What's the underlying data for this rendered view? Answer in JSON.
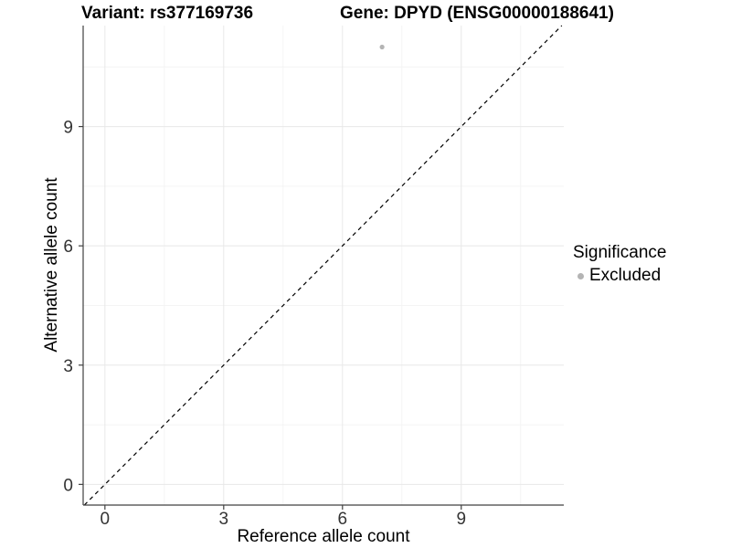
{
  "page": {
    "background": "#ffffff"
  },
  "header": {
    "variant_title": "Variant: rs377169736",
    "gene_title": "Gene: DPYD (ENSG00000188641)"
  },
  "chart_data": {
    "type": "scatter",
    "title": "Variant: rs377169736 / Gene: DPYD (ENSG00000188641)",
    "xlabel": "Reference allele count",
    "ylabel": "Alternative allele count",
    "xlim": [
      -0.55,
      11.59
    ],
    "ylim": [
      -0.52,
      11.54
    ],
    "x_ticks": [
      0,
      3,
      6,
      9
    ],
    "y_ticks": [
      0,
      3,
      6,
      9
    ],
    "x_tick_labels": [
      "0",
      "3",
      "6",
      "9"
    ],
    "y_tick_labels": [
      "0",
      "3",
      "6",
      "9"
    ],
    "x_minor_ticks": [
      1.5,
      4.5,
      7.5,
      10.5
    ],
    "y_minor_ticks": [
      1.5,
      4.5,
      7.5,
      10.5
    ],
    "grid": "major+minor",
    "legend_position": "right-middle",
    "points": [
      {
        "x": 7,
        "y": 11,
        "series": "Excluded"
      }
    ],
    "identity_line": {
      "slope": 1,
      "intercept": 0,
      "style": "dashed",
      "color": "#000000"
    },
    "colors": {
      "point": "#b4b4b4",
      "grid_major": "#e8e8e8",
      "grid_minor": "#f4f4f4",
      "axis": "#404040",
      "tick_label": "#333333"
    }
  },
  "legend": {
    "title": "Significance",
    "entries": [
      {
        "label": "Excluded",
        "color": "#b4b4b4"
      }
    ]
  }
}
